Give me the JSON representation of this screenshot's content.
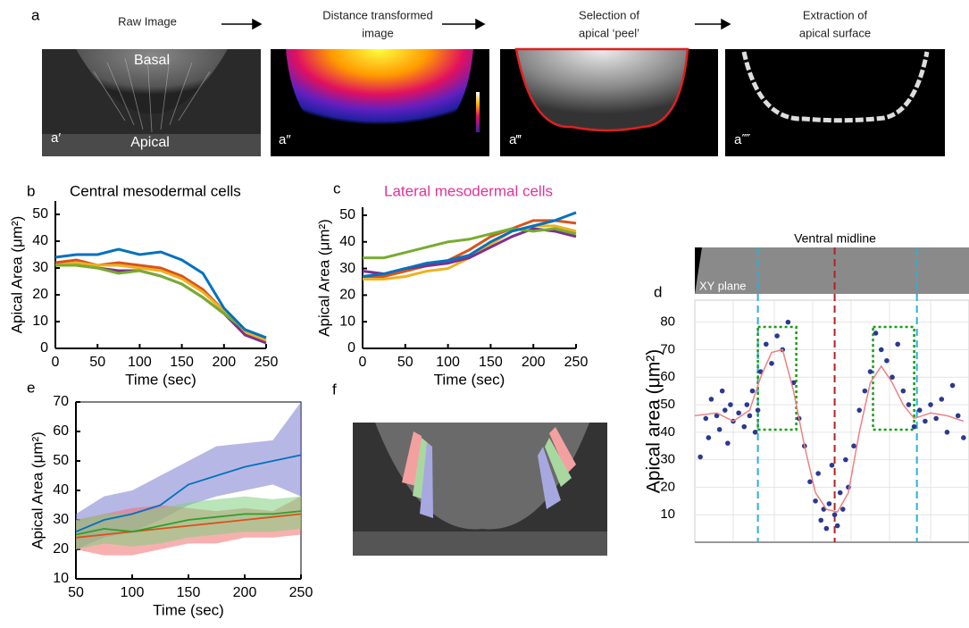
{
  "panel_a": {
    "panel": "a",
    "steps": [
      "Raw Image",
      "Distance transformed",
      "image",
      "Selection of",
      "apical ‘peel’",
      "Extraction of",
      "apical surface"
    ],
    "images": [
      {
        "labels": [
          "Basal",
          "Apical",
          "a′"
        ]
      },
      {
        "labels": [
          "a″"
        ]
      },
      {
        "labels": [
          "a‴"
        ]
      },
      {
        "labels": [
          "a⁗"
        ]
      }
    ]
  },
  "panel_f": {
    "panel": "f"
  },
  "chart_data": [
    {
      "type": "line",
      "panel": "b",
      "title": "Central mesodermal cells",
      "title_color": "#000000",
      "xlabel": "Time (sec)",
      "ylabel": "Apical Area (μm²)",
      "x": [
        0,
        25,
        50,
        75,
        100,
        125,
        150,
        175,
        200,
        225,
        250
      ],
      "xlim": [
        0,
        250
      ],
      "xticks": [
        0,
        50,
        100,
        150,
        200,
        250
      ],
      "ylim": [
        0,
        55
      ],
      "yticks": [
        0,
        10,
        20,
        30,
        40,
        50
      ],
      "series": [
        {
          "color": "#d95319",
          "values": [
            32,
            33,
            31,
            32,
            31,
            30,
            27,
            22,
            14,
            5,
            3
          ]
        },
        {
          "color": "#edb120",
          "values": [
            31,
            32,
            31,
            31,
            30,
            29,
            26,
            21,
            14,
            6,
            3
          ]
        },
        {
          "color": "#7e2f8e",
          "values": [
            31,
            31,
            30,
            29,
            29,
            27,
            24,
            19,
            13,
            5,
            2
          ]
        },
        {
          "color": "#77ac30",
          "values": [
            31,
            31,
            30,
            28,
            29,
            27,
            24,
            19,
            13,
            7,
            4
          ]
        },
        {
          "color": "#0072bd",
          "values": [
            34,
            35,
            35,
            37,
            35,
            36,
            33,
            28,
            15,
            7,
            4
          ]
        }
      ]
    },
    {
      "type": "line",
      "panel": "c",
      "title": "Lateral mesodermal cells",
      "title_color": "#e0339a",
      "xlabel": "Time (sec)",
      "ylabel": "Apical Area (μm²)",
      "x": [
        0,
        25,
        50,
        75,
        100,
        125,
        150,
        175,
        200,
        225,
        250
      ],
      "xlim": [
        0,
        250
      ],
      "xticks": [
        0,
        50,
        100,
        150,
        200,
        250
      ],
      "ylim": [
        0,
        53
      ],
      "yticks": [
        0,
        10,
        20,
        30,
        40,
        50
      ],
      "series": [
        {
          "color": "#d95319",
          "values": [
            27,
            27,
            29,
            31,
            33,
            37,
            42,
            45,
            48,
            48,
            47
          ]
        },
        {
          "color": "#edb120",
          "values": [
            26,
            26,
            27,
            29,
            30,
            34,
            39,
            44,
            46,
            46,
            44
          ]
        },
        {
          "color": "#7e2f8e",
          "values": [
            29,
            28,
            30,
            31,
            32,
            34,
            38,
            42,
            45,
            44,
            42
          ]
        },
        {
          "color": "#77ac30",
          "values": [
            34,
            34,
            36,
            38,
            40,
            41,
            43,
            45,
            44,
            45,
            43
          ]
        },
        {
          "color": "#0072bd",
          "values": [
            27,
            28,
            30,
            32,
            33,
            35,
            40,
            44,
            46,
            48,
            51
          ]
        }
      ]
    },
    {
      "type": "scatter",
      "panel": "d",
      "ylabel": "Apical area (μm²)",
      "strip_title": "Ventral midline",
      "strip_label": "XY plane",
      "grid": true,
      "color": "#2b3990",
      "line_color": "#f08080",
      "xlim": [
        0,
        100
      ],
      "ylim": [
        0,
        88
      ],
      "yticks": [
        10,
        20,
        30,
        40,
        50,
        60,
        70,
        80
      ],
      "x": [
        2,
        4,
        5,
        6,
        8,
        9,
        10,
        11,
        12,
        13,
        14,
        16,
        18,
        19,
        20,
        21,
        22,
        23,
        24,
        26,
        28,
        30,
        32,
        34,
        36,
        38,
        40,
        42,
        44,
        45,
        46,
        47,
        48,
        49,
        50,
        51,
        52,
        53,
        54,
        55,
        56,
        58,
        60,
        62,
        64,
        66,
        68,
        70,
        72,
        74,
        76,
        78,
        80,
        82,
        84,
        86,
        88,
        90,
        92,
        94,
        96,
        98
      ],
      "values": [
        31,
        45,
        38,
        52,
        46,
        41,
        55,
        48,
        36,
        50,
        44,
        47,
        42,
        50,
        46,
        55,
        40,
        48,
        62,
        72,
        65,
        75,
        70,
        80,
        58,
        45,
        35,
        22,
        15,
        25,
        8,
        12,
        5,
        14,
        28,
        10,
        6,
        18,
        12,
        30,
        20,
        35,
        48,
        55,
        62,
        76,
        70,
        66,
        60,
        72,
        55,
        50,
        42,
        48,
        44,
        50,
        45,
        52,
        40,
        57,
        46,
        38
      ],
      "trend_x": [
        0,
        8,
        14,
        20,
        24,
        28,
        32,
        36,
        40,
        44,
        48,
        52,
        56,
        60,
        64,
        68,
        72,
        76,
        80,
        86,
        92,
        98
      ],
      "trend": [
        46,
        47,
        44,
        48,
        60,
        69,
        70,
        55,
        35,
        18,
        12,
        11,
        18,
        40,
        58,
        64,
        58,
        50,
        45,
        47,
        46,
        44
      ]
    },
    {
      "type": "line",
      "panel": "e",
      "box": true,
      "xlabel": "Time (sec)",
      "ylabel": "Apical Area (μm²)",
      "x": [
        50,
        75,
        100,
        125,
        150,
        175,
        200,
        225,
        250
      ],
      "xlim": [
        50,
        250
      ],
      "xticks": [
        50,
        100,
        150,
        200,
        250
      ],
      "ylim": [
        10,
        70
      ],
      "yticks": [
        10,
        20,
        30,
        40,
        50,
        60,
        70
      ],
      "series": [
        {
          "color": "#0072bd",
          "band_color": "#7b7bd0",
          "values": [
            26,
            30,
            32,
            35,
            42,
            45,
            48,
            50,
            52
          ],
          "lower": [
            20,
            24,
            26,
            30,
            35,
            38,
            40,
            42,
            38
          ],
          "upper": [
            32,
            38,
            40,
            45,
            50,
            55,
            56,
            57,
            70
          ]
        },
        {
          "color": "#d95319",
          "band_color": "#f07070",
          "values": [
            24,
            25,
            26,
            27,
            28,
            29,
            30,
            31,
            32
          ],
          "lower": [
            20,
            18,
            18,
            20,
            22,
            22,
            24,
            24,
            25
          ],
          "upper": [
            30,
            32,
            34,
            35,
            34,
            33,
            34,
            33,
            38
          ]
        },
        {
          "color": "#2ca02c",
          "band_color": "#7fcf7f",
          "values": [
            25,
            27,
            26,
            28,
            30,
            31,
            32,
            32,
            33
          ],
          "lower": [
            20,
            22,
            21,
            22,
            24,
            25,
            26,
            26,
            27
          ],
          "upper": [
            30,
            32,
            32,
            34,
            36,
            37,
            38,
            37,
            38
          ]
        }
      ]
    }
  ]
}
